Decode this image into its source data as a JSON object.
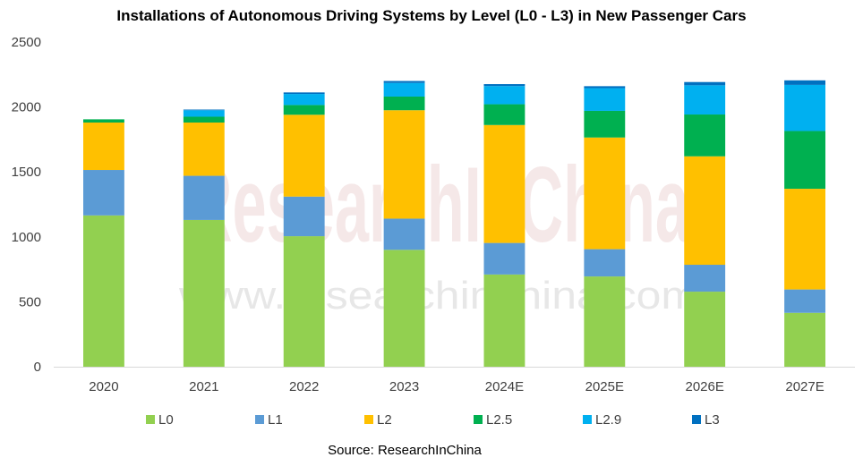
{
  "chart_data": {
    "type": "bar",
    "stacked": true,
    "title": "Installations of Autonomous Driving Systems by Level (L0 - L3) in New Passenger Cars",
    "categories": [
      "2020",
      "2021",
      "2022",
      "2023",
      "2024E",
      "2025E",
      "2026E",
      "2027E"
    ],
    "ylim": [
      0,
      2500
    ],
    "yticks": [
      0,
      500,
      1000,
      1500,
      2000,
      2500
    ],
    "grid": false,
    "legend_position": "bottom",
    "series": [
      {
        "name": "L0",
        "color": "#92d050",
        "values": [
          1165,
          1130,
          1005,
          900,
          710,
          695,
          578,
          415
        ]
      },
      {
        "name": "L1",
        "color": "#5b9bd5",
        "values": [
          350,
          340,
          305,
          240,
          243,
          210,
          207,
          180
        ]
      },
      {
        "name": "L2",
        "color": "#ffc000",
        "values": [
          365,
          410,
          630,
          835,
          908,
          860,
          835,
          775
        ]
      },
      {
        "name": "L2.5",
        "color": "#00b050",
        "values": [
          25,
          45,
          75,
          105,
          160,
          205,
          322,
          445
        ]
      },
      {
        "name": "L2.9",
        "color": "#00b0f0",
        "values": [
          0,
          50,
          85,
          105,
          140,
          175,
          225,
          355
        ]
      },
      {
        "name": "L3",
        "color": "#0070c0",
        "values": [
          0,
          5,
          12,
          15,
          15,
          15,
          25,
          35
        ]
      }
    ]
  },
  "watermark": {
    "brand": "ResearchInChina",
    "url": "www.researchinchina.com"
  },
  "source_note": "Source: ResearchInChina"
}
